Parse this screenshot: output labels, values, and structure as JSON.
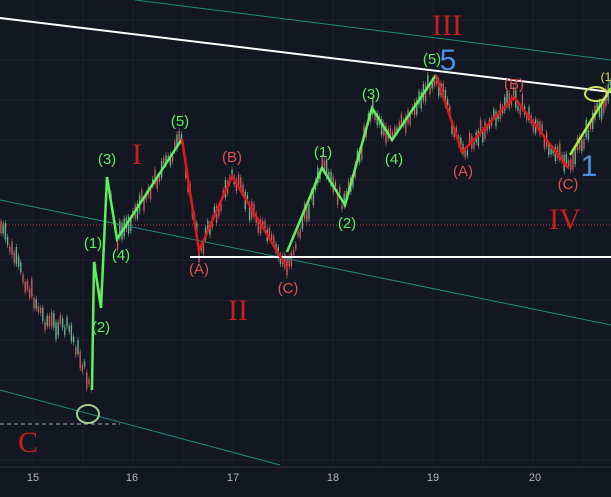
{
  "waves": {
    "major": [
      "III",
      "I",
      "II",
      "IV",
      "C"
    ],
    "blue": [
      "5",
      "1"
    ],
    "green": [
      "(5)",
      "(5)",
      "(3)",
      "(1)",
      "(4)",
      "(2)",
      "(1)",
      "(3)",
      "(4)",
      "(2)"
    ],
    "red": [
      "(A)",
      "(B)",
      "(C)",
      "(A)",
      "(B)",
      "(C)"
    ],
    "yellow": "(1"
  },
  "x_axis": {
    "labels": [
      "15",
      "16",
      "17",
      "18",
      "19",
      "20"
    ]
  }
}
